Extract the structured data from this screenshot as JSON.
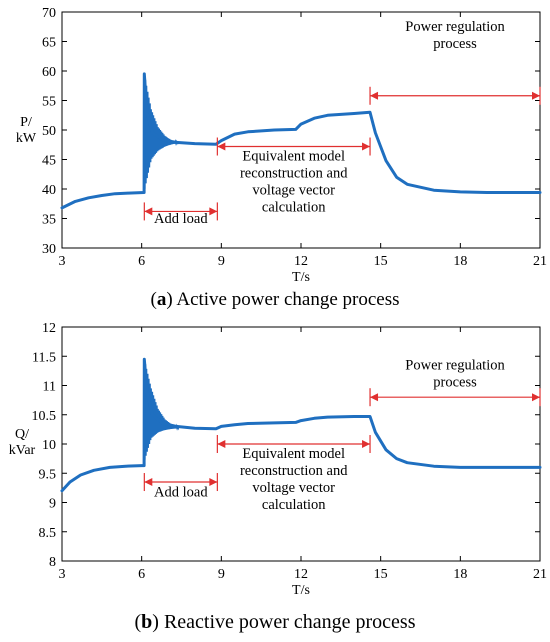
{
  "colors": {
    "line": "#1f6fc0",
    "annotation": "#e03030",
    "axis": "#000000"
  },
  "charts": [
    {
      "caption": {
        "open": "(",
        "id": "a",
        "text": ") Active power change process"
      },
      "chart_data": {
        "type": "line",
        "ylabel": [
          "P/",
          "kW"
        ],
        "xlabel": "T/s",
        "xlim": [
          3,
          21
        ],
        "ylim": [
          30,
          70
        ],
        "xticks": [
          3,
          6,
          9,
          12,
          15,
          18,
          21
        ],
        "yticks": [
          30,
          35,
          40,
          45,
          50,
          55,
          60,
          65,
          70
        ],
        "grid": false,
        "series": [
          {
            "x": [
              3.0,
              3.5,
              4.0,
              4.5,
              5.0,
              5.5,
              6.09,
              6.1,
              6.2,
              6.4,
              6.8,
              7.3,
              8.0,
              8.8,
              9.0,
              9.5,
              10.0,
              11.0,
              11.8,
              12.0,
              12.5,
              13.0,
              14.0,
              14.6,
              14.8,
              15.2,
              15.6,
              16.0,
              17.0,
              18.0,
              19.0,
              20.0,
              21.0
            ],
            "y": [
              36.8,
              37.9,
              38.5,
              38.9,
              39.2,
              39.3,
              39.4,
              59.5,
              53.0,
              49.5,
              48.3,
              47.9,
              47.7,
              47.6,
              48.2,
              49.3,
              49.7,
              50.0,
              50.1,
              51.0,
              52.0,
              52.5,
              52.8,
              53.0,
              49.5,
              44.8,
              42.0,
              40.8,
              39.8,
              39.5,
              39.4,
              39.4,
              39.4
            ]
          }
        ],
        "oscillation": {
          "from": 6.1,
          "to": 7.4,
          "top": [
            59.5,
            53.5,
            50.5,
            49.0,
            48.2,
            47.9
          ],
          "bottom": [
            39.6,
            45.0,
            46.5,
            47.2,
            47.6,
            47.8
          ]
        },
        "annotations": [
          {
            "from": 6.1,
            "to": 8.85,
            "y_at": 36.2,
            "lines": [
              "Add load"
            ],
            "text_y": 34.2
          },
          {
            "from": 8.85,
            "to": 14.6,
            "y_at": 47.2,
            "lines": [
              "Equivalent model",
              "reconstruction and",
              "voltage vector",
              "calculation"
            ],
            "text_y": 44.8
          },
          {
            "from": 14.6,
            "to": 21,
            "y_at": 55.8,
            "lines": [
              "Power regulation",
              "process"
            ],
            "text_y": 66.8
          }
        ]
      }
    },
    {
      "caption": {
        "open": "(",
        "id": "b",
        "text": ") Reactive power change process"
      },
      "chart_data": {
        "type": "line",
        "ylabel": [
          "Q/",
          "kVar"
        ],
        "xlabel": "T/s",
        "xlim": [
          3,
          21
        ],
        "ylim": [
          8,
          12
        ],
        "xticks": [
          3,
          6,
          9,
          12,
          15,
          18,
          21
        ],
        "yticks": [
          8,
          8.5,
          9,
          9.5,
          10,
          10.5,
          11,
          11.5,
          12
        ],
        "grid": false,
        "series": [
          {
            "x": [
              3.0,
              3.3,
              3.7,
              4.2,
              4.8,
              5.4,
              6.0,
              6.09,
              6.1,
              6.2,
              6.4,
              6.8,
              7.3,
              8.0,
              8.8,
              9.0,
              9.5,
              10.0,
              11.0,
              11.8,
              12.0,
              12.5,
              13.0,
              14.0,
              14.6,
              14.8,
              15.2,
              15.6,
              16.0,
              17.0,
              18.0,
              19.0,
              20.0,
              21.0
            ],
            "y": [
              9.2,
              9.35,
              9.47,
              9.55,
              9.6,
              9.62,
              9.63,
              9.63,
              11.45,
              10.9,
              10.5,
              10.35,
              10.3,
              10.27,
              10.26,
              10.3,
              10.33,
              10.35,
              10.36,
              10.37,
              10.4,
              10.44,
              10.46,
              10.47,
              10.47,
              10.2,
              9.9,
              9.75,
              9.68,
              9.62,
              9.6,
              9.6,
              9.6,
              9.6
            ]
          }
        ],
        "oscillation": {
          "from": 6.1,
          "to": 7.4,
          "top": [
            11.45,
            10.95,
            10.6,
            10.42,
            10.33,
            10.29
          ],
          "bottom": [
            9.7,
            10.1,
            10.2,
            10.24,
            10.26,
            10.27
          ]
        },
        "annotations": [
          {
            "from": 6.1,
            "to": 8.85,
            "y_at": 9.35,
            "lines": [
              "Add load"
            ],
            "text_y": 9.1
          },
          {
            "from": 8.85,
            "to": 14.6,
            "y_at": 10.0,
            "lines": [
              "Equivalent model",
              "reconstruction and",
              "voltage vector",
              "calculation"
            ],
            "text_y": 9.76
          },
          {
            "from": 14.6,
            "to": 21,
            "y_at": 10.8,
            "lines": [
              "Power regulation",
              "process"
            ],
            "text_y": 11.27
          }
        ]
      }
    }
  ]
}
